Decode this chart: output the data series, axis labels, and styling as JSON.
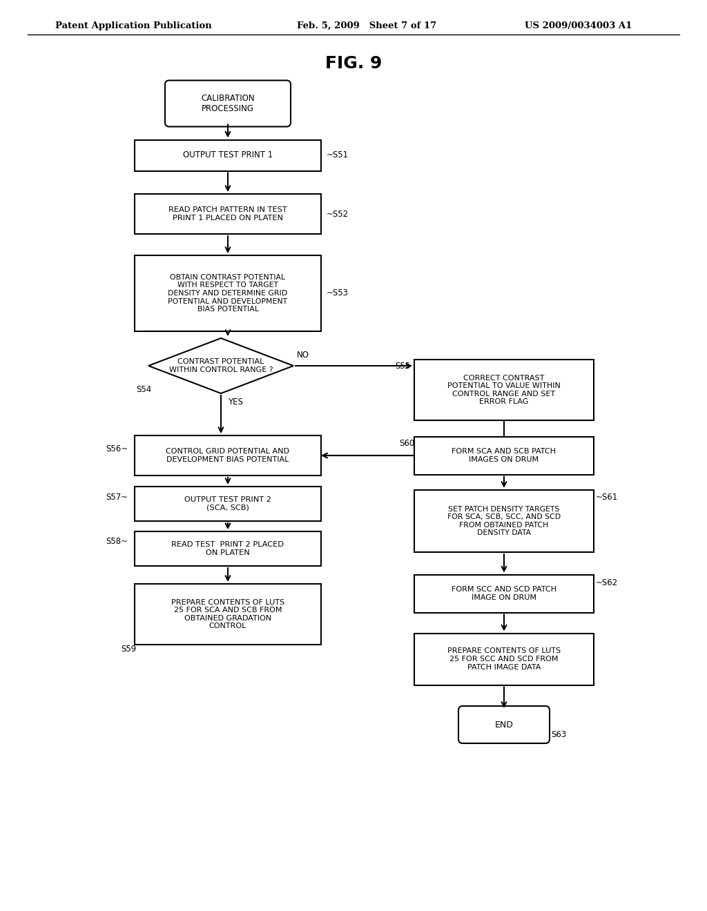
{
  "title": "FIG. 9",
  "header_left": "Patent Application Publication",
  "header_mid": "Feb. 5, 2009   Sheet 7 of 17",
  "header_right": "US 2009/0034003 A1",
  "bg_color": "#ffffff",
  "fig_width": 10.24,
  "fig_height": 13.2,
  "dpi": 100
}
